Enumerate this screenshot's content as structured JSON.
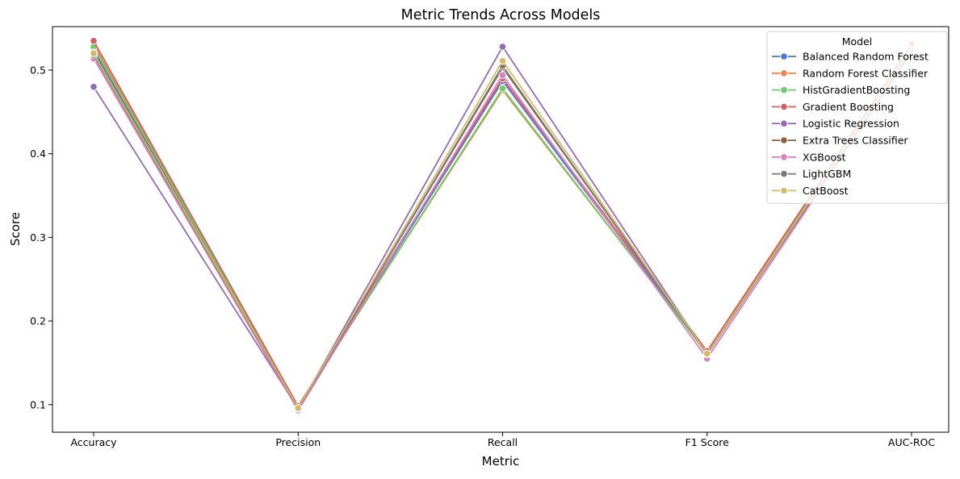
{
  "chart_data": {
    "type": "line",
    "title": "Metric Trends Across Models",
    "xlabel": "Metric",
    "ylabel": "Score",
    "categories": [
      "Accuracy",
      "Precision",
      "Recall",
      "F1 Score",
      "AUC-ROC"
    ],
    "ylim": [
      0.067,
      0.552
    ],
    "yticks": [
      0.1,
      0.2,
      0.3,
      0.4,
      0.5
    ],
    "ytick_labels": [
      "0.1",
      "0.2",
      "0.3",
      "0.4",
      "0.5"
    ],
    "grid": false,
    "legend": {
      "title": "Model",
      "position": "top-right"
    },
    "series": [
      {
        "name": "Balanced Random Forest",
        "color": "#4878d0",
        "values": [
          0.524,
          0.096,
          0.487,
          0.161,
          0.528
        ]
      },
      {
        "name": "Random Forest Classifier",
        "color": "#ee854a",
        "values": [
          0.531,
          0.098,
          0.476,
          0.162,
          0.53
        ]
      },
      {
        "name": "HistGradientBoosting",
        "color": "#6acc64",
        "values": [
          0.528,
          0.097,
          0.478,
          0.161,
          0.527
        ]
      },
      {
        "name": "Gradient Boosting",
        "color": "#d65f5f",
        "values": [
          0.535,
          0.098,
          0.49,
          0.164,
          0.531
        ]
      },
      {
        "name": "Logistic Regression",
        "color": "#956cb4",
        "values": [
          0.48,
          0.095,
          0.528,
          0.16,
          0.522
        ]
      },
      {
        "name": "Extra Trees Classifier",
        "color": "#8c613c",
        "values": [
          0.521,
          0.096,
          0.503,
          0.161,
          0.524
        ]
      },
      {
        "name": "XGBoost",
        "color": "#dc7ec0",
        "values": [
          0.514,
          0.093,
          0.494,
          0.155,
          0.521
        ]
      },
      {
        "name": "LightGBM",
        "color": "#797979",
        "values": [
          0.518,
          0.095,
          0.505,
          0.16,
          0.523
        ]
      },
      {
        "name": "CatBoost",
        "color": "#d5bb67",
        "values": [
          0.52,
          0.096,
          0.511,
          0.161,
          0.525
        ]
      }
    ]
  }
}
